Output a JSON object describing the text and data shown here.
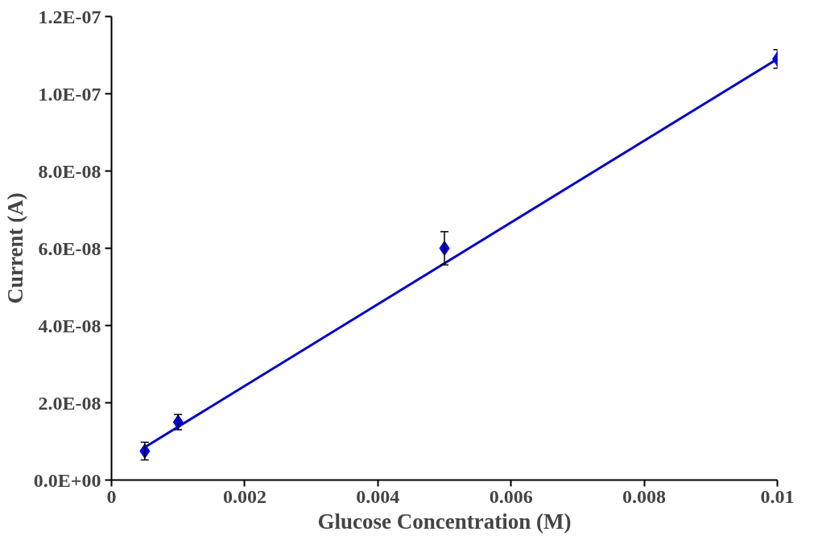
{
  "chart_data": {
    "type": "scatter",
    "xlabel": "Glucose Concentration (M)",
    "ylabel": "Current (A)",
    "xlim": [
      0,
      0.01
    ],
    "ylim": [
      0,
      1.2e-07
    ],
    "xticks": [
      0,
      0.002,
      0.004,
      0.006,
      0.008,
      0.01
    ],
    "yticks": [
      {
        "value": 0,
        "label": "0.0E+00"
      },
      {
        "value": 2e-08,
        "label": "2.0E-08"
      },
      {
        "value": 4e-08,
        "label": "4.0E-08"
      },
      {
        "value": 6e-08,
        "label": "6.0E-08"
      },
      {
        "value": 8e-08,
        "label": "8.0E-08"
      },
      {
        "value": 1e-07,
        "label": "1.0E-07"
      },
      {
        "value": 1.2e-07,
        "label": "1.2E-07"
      }
    ],
    "grid": false,
    "series": [
      {
        "color": "#0000ff",
        "marker": "diamond",
        "x": [
          0.0005,
          0.001,
          0.005,
          0.01
        ],
        "values": [
          7.5e-09,
          1.5e-08,
          6e-08,
          1.09e-07
        ],
        "errors": [
          2.3e-09,
          2e-09,
          4.3e-09,
          2.4e-09
        ]
      },
      {
        "type": "line",
        "color": "#0000cc",
        "x": [
          0.0005,
          0.01
        ],
        "values": [
          8.5e-09,
          1.09e-07
        ]
      }
    ]
  }
}
